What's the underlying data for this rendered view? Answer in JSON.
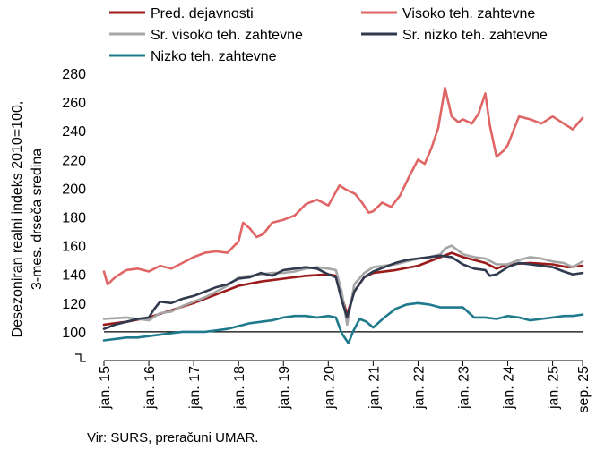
{
  "chart_data": {
    "type": "line",
    "ylabel_lines": [
      "Desezoniran realni indeks 2010=100,",
      "3-mes. drseča sredina"
    ],
    "ylim": [
      80,
      280
    ],
    "yticks": [
      100,
      120,
      140,
      160,
      180,
      200,
      220,
      240,
      260,
      280
    ],
    "reference_line": 100,
    "xlim": [
      2015.0,
      2025.667
    ],
    "xticks": [
      {
        "x": 2015,
        "label": "jan. 15"
      },
      {
        "x": 2016,
        "label": "jan. 16"
      },
      {
        "x": 2017,
        "label": "jan. 17"
      },
      {
        "x": 2018,
        "label": "jan. 18"
      },
      {
        "x": 2019,
        "label": "jan. 19"
      },
      {
        "x": 2020,
        "label": "jan. 20"
      },
      {
        "x": 2021,
        "label": "jan. 21"
      },
      {
        "x": 2022,
        "label": "jan. 22"
      },
      {
        "x": 2023,
        "label": "jan. 23"
      },
      {
        "x": 2024,
        "label": "jan. 24"
      },
      {
        "x": 2025,
        "label": "jan. 25"
      },
      {
        "x": 2025.667,
        "label": "sep. 25"
      }
    ],
    "legend": "top",
    "grid": false,
    "series": [
      {
        "name": "Pred. dejavnosti",
        "color": "#9b1b1b",
        "points": [
          [
            2015,
            105
          ],
          [
            2015.5,
            107
          ],
          [
            2016,
            110
          ],
          [
            2016.5,
            115
          ],
          [
            2017,
            120
          ],
          [
            2017.5,
            126
          ],
          [
            2018,
            132
          ],
          [
            2018.5,
            135
          ],
          [
            2019,
            137
          ],
          [
            2019.5,
            139
          ],
          [
            2020,
            140
          ],
          [
            2020.17,
            139
          ],
          [
            2020.3,
            125
          ],
          [
            2020.42,
            112
          ],
          [
            2020.58,
            128
          ],
          [
            2020.8,
            138
          ],
          [
            2021,
            141
          ],
          [
            2021.5,
            143
          ],
          [
            2022,
            146
          ],
          [
            2022.5,
            152
          ],
          [
            2022.75,
            155
          ],
          [
            2023,
            152
          ],
          [
            2023.5,
            148
          ],
          [
            2023.75,
            144
          ],
          [
            2024,
            147
          ],
          [
            2024.5,
            148
          ],
          [
            2025,
            147
          ],
          [
            2025.33,
            145
          ],
          [
            2025.667,
            146
          ]
        ]
      },
      {
        "name": "Visoko teh. zahtevne",
        "color": "#e06666",
        "points": [
          [
            2015,
            142
          ],
          [
            2015.08,
            133
          ],
          [
            2015.25,
            138
          ],
          [
            2015.5,
            143
          ],
          [
            2015.75,
            144
          ],
          [
            2016,
            142
          ],
          [
            2016.25,
            146
          ],
          [
            2016.5,
            144
          ],
          [
            2016.75,
            148
          ],
          [
            2017,
            152
          ],
          [
            2017.25,
            155
          ],
          [
            2017.5,
            156
          ],
          [
            2017.75,
            155
          ],
          [
            2018,
            163
          ],
          [
            2018.1,
            176
          ],
          [
            2018.25,
            172
          ],
          [
            2018.4,
            166
          ],
          [
            2018.55,
            168
          ],
          [
            2018.75,
            176
          ],
          [
            2019,
            178
          ],
          [
            2019.25,
            181
          ],
          [
            2019.5,
            189
          ],
          [
            2019.75,
            192
          ],
          [
            2020,
            188
          ],
          [
            2020.25,
            202
          ],
          [
            2020.4,
            199
          ],
          [
            2020.6,
            196
          ],
          [
            2020.75,
            190
          ],
          [
            2020.9,
            183
          ],
          [
            2021,
            184
          ],
          [
            2021.2,
            190
          ],
          [
            2021.4,
            187
          ],
          [
            2021.6,
            195
          ],
          [
            2021.8,
            208
          ],
          [
            2022,
            220
          ],
          [
            2022.15,
            217
          ],
          [
            2022.3,
            228
          ],
          [
            2022.45,
            242
          ],
          [
            2022.6,
            270
          ],
          [
            2022.75,
            250
          ],
          [
            2022.9,
            246
          ],
          [
            2023,
            248
          ],
          [
            2023.2,
            245
          ],
          [
            2023.35,
            252
          ],
          [
            2023.5,
            266
          ],
          [
            2023.6,
            244
          ],
          [
            2023.75,
            222
          ],
          [
            2023.9,
            226
          ],
          [
            2024,
            230
          ],
          [
            2024.25,
            250
          ],
          [
            2024.5,
            248
          ],
          [
            2024.75,
            245
          ],
          [
            2025,
            250
          ],
          [
            2025.25,
            245
          ],
          [
            2025.45,
            241
          ],
          [
            2025.667,
            249
          ]
        ]
      },
      {
        "name": "Sr. visoko teh. zahtevne",
        "color": "#a6a6a6",
        "points": [
          [
            2015,
            109
          ],
          [
            2015.5,
            110
          ],
          [
            2016,
            108
          ],
          [
            2016.25,
            113
          ],
          [
            2016.5,
            114
          ],
          [
            2016.75,
            118
          ],
          [
            2017,
            121
          ],
          [
            2017.25,
            124
          ],
          [
            2017.5,
            128
          ],
          [
            2017.75,
            132
          ],
          [
            2018,
            138
          ],
          [
            2018.25,
            139
          ],
          [
            2018.5,
            140
          ],
          [
            2018.75,
            141
          ],
          [
            2019,
            141
          ],
          [
            2019.25,
            142
          ],
          [
            2019.5,
            144
          ],
          [
            2019.75,
            145
          ],
          [
            2020,
            144
          ],
          [
            2020.17,
            143
          ],
          [
            2020.3,
            128
          ],
          [
            2020.42,
            105
          ],
          [
            2020.58,
            133
          ],
          [
            2020.8,
            141
          ],
          [
            2021,
            145
          ],
          [
            2021.25,
            146
          ],
          [
            2021.5,
            147
          ],
          [
            2021.75,
            149
          ],
          [
            2022,
            151
          ],
          [
            2022.25,
            152
          ],
          [
            2022.5,
            154
          ],
          [
            2022.6,
            158
          ],
          [
            2022.75,
            160
          ],
          [
            2023,
            154
          ],
          [
            2023.25,
            152
          ],
          [
            2023.5,
            151
          ],
          [
            2023.75,
            147
          ],
          [
            2024,
            147
          ],
          [
            2024.25,
            150
          ],
          [
            2024.5,
            152
          ],
          [
            2024.75,
            151
          ],
          [
            2025,
            149
          ],
          [
            2025.25,
            148
          ],
          [
            2025.45,
            145
          ],
          [
            2025.667,
            149
          ]
        ]
      },
      {
        "name": "Sr. nizko teh. zahtevne",
        "color": "#2f3a4f",
        "points": [
          [
            2015,
            102
          ],
          [
            2015.25,
            105
          ],
          [
            2015.5,
            107
          ],
          [
            2015.75,
            109
          ],
          [
            2016,
            110
          ],
          [
            2016.1,
            115
          ],
          [
            2016.25,
            121
          ],
          [
            2016.5,
            120
          ],
          [
            2016.75,
            123
          ],
          [
            2017,
            125
          ],
          [
            2017.25,
            128
          ],
          [
            2017.5,
            131
          ],
          [
            2017.75,
            133
          ],
          [
            2018,
            137
          ],
          [
            2018.25,
            138
          ],
          [
            2018.5,
            141
          ],
          [
            2018.75,
            139
          ],
          [
            2019,
            143
          ],
          [
            2019.25,
            144
          ],
          [
            2019.5,
            145
          ],
          [
            2019.75,
            144
          ],
          [
            2020,
            140
          ],
          [
            2020.17,
            138
          ],
          [
            2020.3,
            122
          ],
          [
            2020.42,
            110
          ],
          [
            2020.58,
            128
          ],
          [
            2020.8,
            138
          ],
          [
            2021,
            142
          ],
          [
            2021.25,
            145
          ],
          [
            2021.5,
            148
          ],
          [
            2021.75,
            150
          ],
          [
            2022,
            151
          ],
          [
            2022.25,
            152
          ],
          [
            2022.5,
            153
          ],
          [
            2022.75,
            152
          ],
          [
            2023,
            147
          ],
          [
            2023.25,
            144
          ],
          [
            2023.5,
            143
          ],
          [
            2023.6,
            139
          ],
          [
            2023.75,
            140
          ],
          [
            2024,
            145
          ],
          [
            2024.25,
            148
          ],
          [
            2024.5,
            147
          ],
          [
            2024.75,
            146
          ],
          [
            2025,
            145
          ],
          [
            2025.25,
            142
          ],
          [
            2025.45,
            140
          ],
          [
            2025.667,
            141
          ]
        ]
      },
      {
        "name": "Nizko teh. zahtevne",
        "color": "#1f7a8c",
        "points": [
          [
            2015,
            94
          ],
          [
            2015.25,
            95
          ],
          [
            2015.5,
            96
          ],
          [
            2015.75,
            96
          ],
          [
            2016,
            97
          ],
          [
            2016.25,
            98
          ],
          [
            2016.5,
            99
          ],
          [
            2016.75,
            100
          ],
          [
            2017,
            100
          ],
          [
            2017.25,
            100
          ],
          [
            2017.5,
            101
          ],
          [
            2017.75,
            102
          ],
          [
            2018,
            104
          ],
          [
            2018.25,
            106
          ],
          [
            2018.5,
            107
          ],
          [
            2018.75,
            108
          ],
          [
            2019,
            110
          ],
          [
            2019.25,
            111
          ],
          [
            2019.5,
            111
          ],
          [
            2019.75,
            110
          ],
          [
            2020,
            111
          ],
          [
            2020.17,
            110
          ],
          [
            2020.3,
            99
          ],
          [
            2020.45,
            92
          ],
          [
            2020.55,
            100
          ],
          [
            2020.7,
            109
          ],
          [
            2020.85,
            107
          ],
          [
            2021,
            103
          ],
          [
            2021.25,
            110
          ],
          [
            2021.5,
            116
          ],
          [
            2021.75,
            119
          ],
          [
            2022,
            120
          ],
          [
            2022.25,
            119
          ],
          [
            2022.5,
            117
          ],
          [
            2022.75,
            117
          ],
          [
            2023,
            117
          ],
          [
            2023.25,
            110
          ],
          [
            2023.5,
            110
          ],
          [
            2023.75,
            109
          ],
          [
            2024,
            111
          ],
          [
            2024.25,
            110
          ],
          [
            2024.5,
            108
          ],
          [
            2024.75,
            109
          ],
          [
            2025,
            110
          ],
          [
            2025.25,
            111
          ],
          [
            2025.45,
            111
          ],
          [
            2025.667,
            112
          ]
        ]
      }
    ]
  },
  "source": "Vir: SURS, preračuni UMAR."
}
